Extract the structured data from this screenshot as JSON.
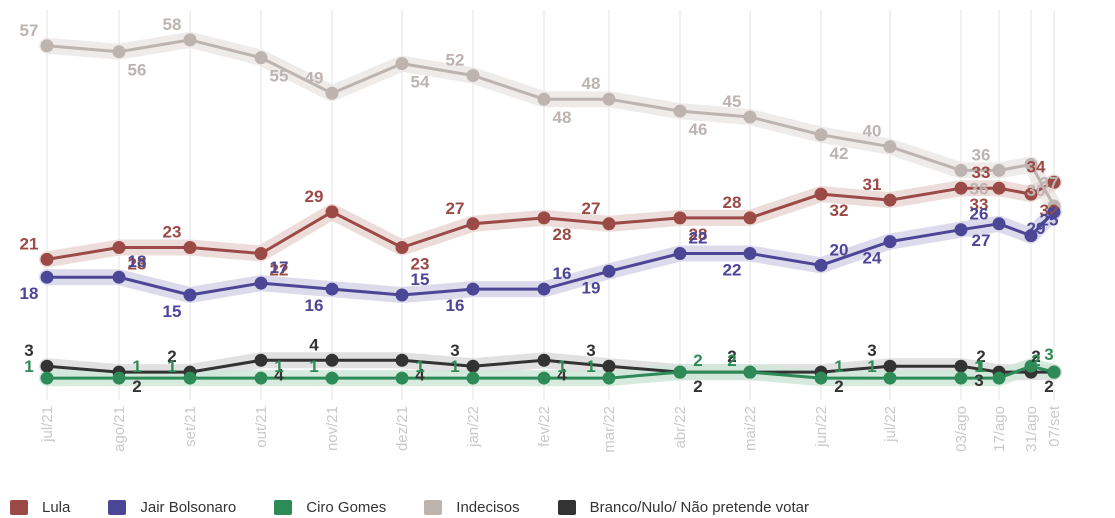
{
  "chart_data": {
    "type": "line",
    "x": [
      "jul/21",
      "ago/21",
      "set/21",
      "out/21",
      "nov/21",
      "dez/21",
      "jan/22",
      "fev/22",
      "mar/22",
      "abr/22",
      "mai/22",
      "jun/22",
      "jul/22",
      "03/ago",
      "17/ago",
      "31/ago",
      "07/set"
    ],
    "ylim": [
      0,
      60
    ],
    "grid": "vertical",
    "legend_position": "bottom-left",
    "series": [
      {
        "name": "Lula",
        "color": "#9b4a46",
        "band": "#e9d6d4",
        "values": [
          21,
          23,
          23,
          22,
          29,
          23,
          27,
          28,
          27,
          28,
          28,
          32,
          31,
          33,
          33,
          32,
          34
        ],
        "labels": [
          "21",
          "23",
          "23",
          "22",
          "29",
          "23",
          "27",
          "28",
          "27",
          "28",
          "28",
          "32",
          "31",
          "33",
          "33",
          "32",
          "34"
        ]
      },
      {
        "name": "Jair Bolsonaro",
        "color": "#4b4796",
        "band": "#d6d5e9",
        "values": [
          18,
          18,
          15,
          17,
          16,
          15,
          16,
          16,
          19,
          22,
          22,
          20,
          24,
          26,
          27,
          25,
          29
        ],
        "labels": [
          "18",
          "18",
          "15",
          "17",
          "16",
          "15",
          "16",
          "16",
          "19",
          "22",
          "22",
          "20",
          "24",
          "26",
          "27",
          "25",
          "29"
        ]
      },
      {
        "name": "Ciro Gomes",
        "color": "#2e8b57",
        "band": "#cfe6d8",
        "values": [
          1,
          1,
          1,
          1,
          1,
          1,
          1,
          1,
          1,
          2,
          2,
          1,
          1,
          1,
          1,
          3,
          2
        ],
        "labels": [
          "1",
          "1",
          "1",
          "1",
          "1",
          "1",
          "1",
          "1",
          "1",
          "2",
          "2",
          "1",
          "1",
          "1",
          "1",
          "3",
          "2"
        ]
      },
      {
        "name": "Indecisos",
        "color": "#bdb4b0",
        "band": "#ece7e5",
        "values": [
          57,
          56,
          58,
          55,
          49,
          54,
          52,
          48,
          48,
          46,
          45,
          42,
          40,
          36,
          36,
          37,
          30
        ],
        "labels": [
          "57",
          "56",
          "58",
          "55",
          "49",
          "54",
          "52",
          "48",
          "48",
          "46",
          "45",
          "42",
          "40",
          "36",
          "36",
          "37",
          "30"
        ]
      },
      {
        "name": "Branco/Nulo/ Não pretende votar",
        "color": "#333333",
        "band": "#dcdcdc",
        "values": [
          3,
          2,
          2,
          4,
          4,
          4,
          3,
          4,
          3,
          2,
          2,
          2,
          3,
          3,
          2,
          2,
          2
        ],
        "labels": [
          "3",
          "2",
          "2",
          "4",
          "4",
          "4",
          "3",
          "4",
          "3",
          "2",
          "2",
          "2",
          "3",
          "3",
          "2",
          "2",
          "2"
        ]
      }
    ]
  }
}
